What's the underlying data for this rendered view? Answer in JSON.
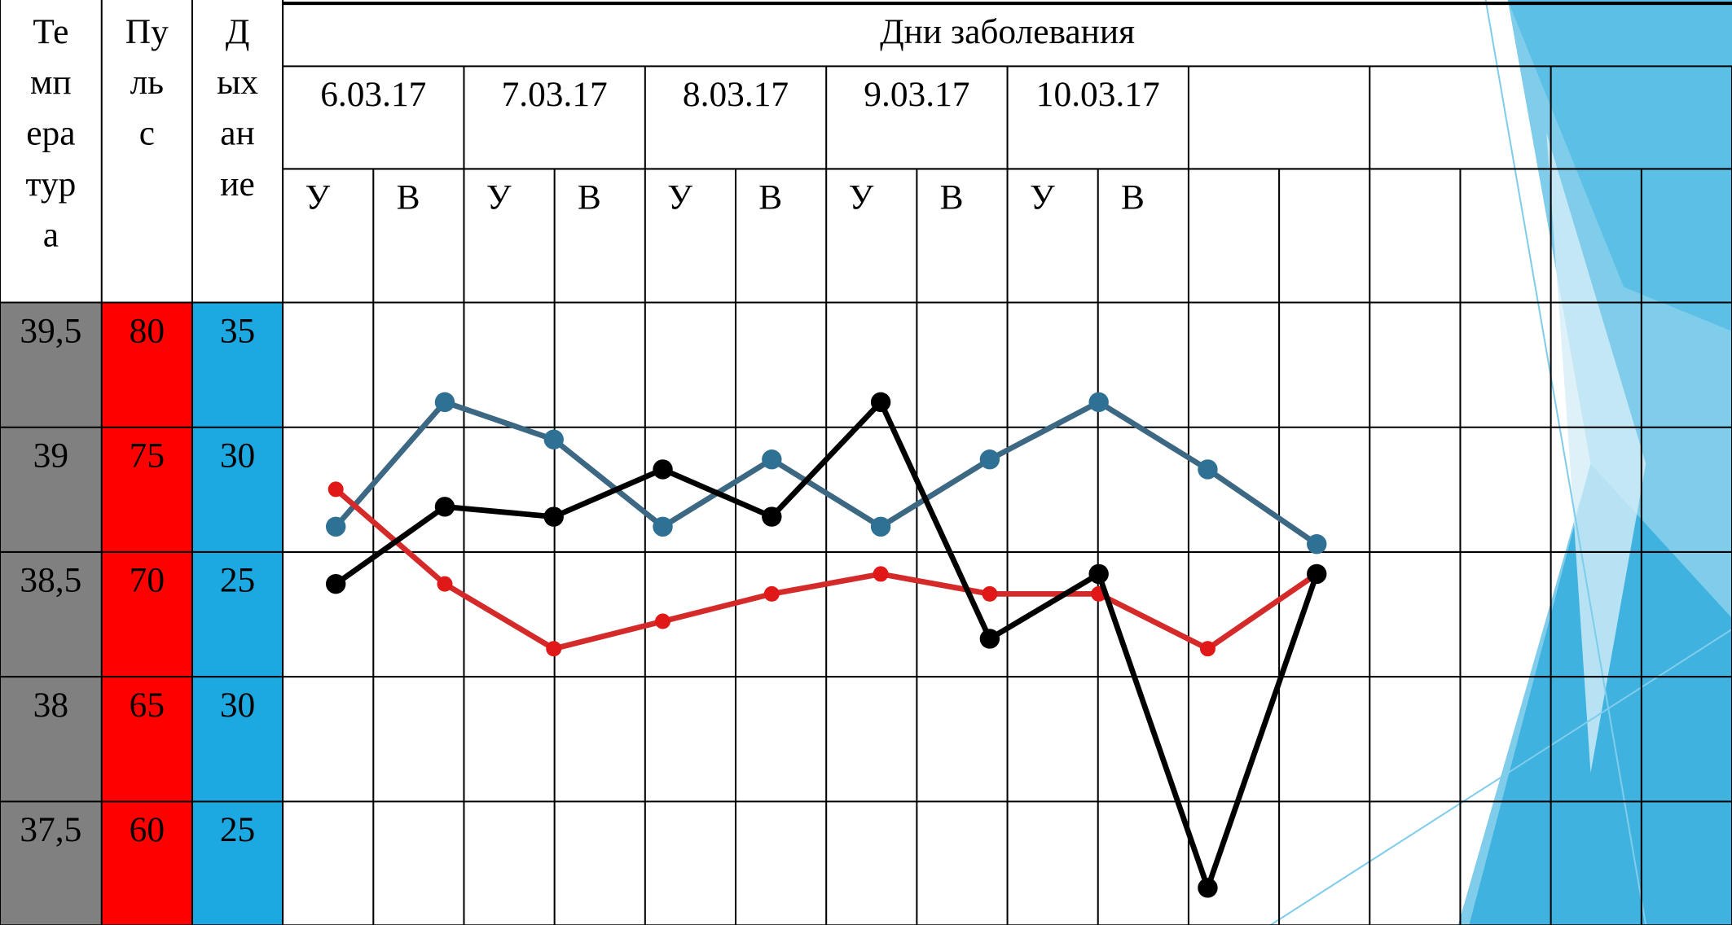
{
  "table": {
    "title": "Дни заболевания",
    "left_headers": [
      "Температура",
      "Пульс",
      "Дыхание"
    ],
    "dates": [
      "6.03.17",
      "7.03.17",
      "8.03.17",
      "9.03.17",
      "10.03.17"
    ],
    "shifts": [
      "У",
      "В",
      "У",
      "В",
      "У",
      "В",
      "У",
      "В",
      "У",
      "В"
    ],
    "scales": [
      {
        "color": "#808080",
        "labels": [
          "39,5",
          "39",
          "38,5",
          "38",
          "37,5"
        ]
      },
      {
        "color": "#ff0000",
        "labels": [
          "80",
          "75",
          "70",
          "65",
          "60"
        ]
      },
      {
        "color": "#1ca9e1",
        "labels": [
          "35",
          "30",
          "25",
          "30",
          "25"
        ]
      }
    ]
  },
  "chart_data": {
    "type": "line",
    "series": [
      {
        "color": "#3d6884",
        "marker_color": "#2e7194",
        "ylim": [
          10,
          35
        ],
        "values": [
          26.0,
          31.0,
          29.5,
          26.0,
          28.7,
          26.0,
          28.7,
          31.0,
          28.3,
          25.3
        ]
      },
      {
        "color": "#d42a2a",
        "marker_color": "#e01818",
        "ylim": [
          55,
          80
        ],
        "values": [
          72.5,
          68.7,
          66.1,
          67.2,
          68.3,
          69.1,
          68.3,
          68.3,
          66.1,
          69.1
        ]
      },
      {
        "color": "#000000",
        "marker_color": "#000000",
        "ylim": [
          37,
          39.5
        ],
        "values": [
          38.37,
          38.68,
          38.64,
          38.83,
          38.64,
          39.1,
          38.15,
          38.41,
          37.15,
          38.41
        ]
      }
    ]
  }
}
